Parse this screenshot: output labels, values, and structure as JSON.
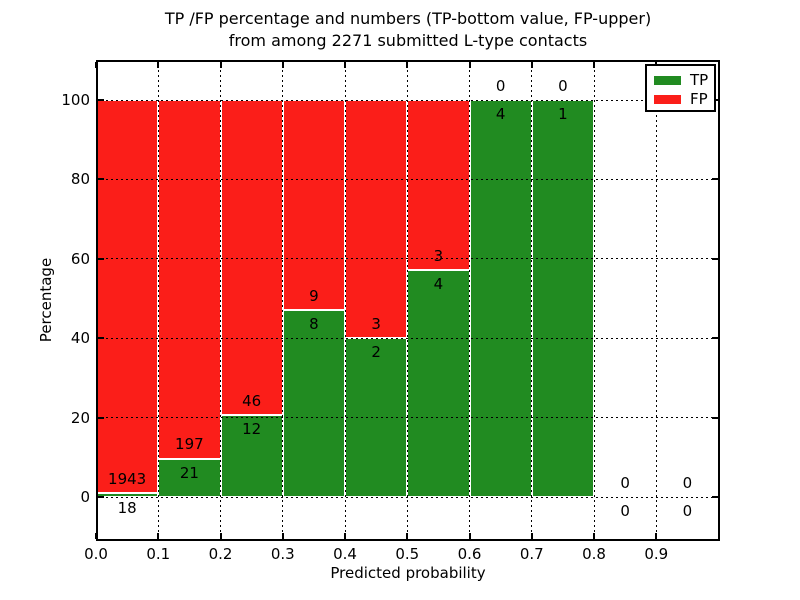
{
  "title": {
    "line1": "TP /FP percentage and numbers (TP-bottom value, FP-upper)",
    "line2": "from among 2271 submitted L-type contacts"
  },
  "chart_data": {
    "type": "bar",
    "subtype": "stacked-percentage-histogram",
    "title": "TP /FP percentage and numbers (TP-bottom value, FP-upper) from among 2271 submitted L-type contacts",
    "total_submitted_contacts": 2271,
    "xlabel": "Predicted probability",
    "ylabel": "Percentage",
    "xlim": [
      0.0,
      1.0
    ],
    "ylim": [
      -11,
      110
    ],
    "x_tick_labels": [
      "0.0",
      "0.1",
      "0.2",
      "0.3",
      "0.4",
      "0.5",
      "0.6",
      "0.7",
      "0.8",
      "0.9"
    ],
    "y_ticks": [
      0,
      20,
      40,
      60,
      80,
      100
    ],
    "grid": true,
    "annotation_scheme": "TP count below segment boundary, FP count above segment boundary",
    "legend": {
      "position": "upper-right",
      "entries": [
        {
          "label": "TP",
          "color": "#218b21"
        },
        {
          "label": "FP",
          "color": "#fb1e19"
        }
      ]
    },
    "series": [
      {
        "name": "TP",
        "values": [
          18,
          21,
          12,
          8,
          2,
          4,
          4,
          1,
          0,
          0
        ]
      },
      {
        "name": "FP",
        "values": [
          1943,
          197,
          46,
          9,
          3,
          3,
          0,
          0,
          0,
          0
        ]
      }
    ],
    "bins": [
      {
        "x0": 0.0,
        "x1": 0.1,
        "tp": 18,
        "fp": 1943
      },
      {
        "x0": 0.1,
        "x1": 0.2,
        "tp": 21,
        "fp": 197
      },
      {
        "x0": 0.2,
        "x1": 0.3,
        "tp": 12,
        "fp": 46
      },
      {
        "x0": 0.3,
        "x1": 0.4,
        "tp": 8,
        "fp": 9
      },
      {
        "x0": 0.4,
        "x1": 0.5,
        "tp": 2,
        "fp": 3
      },
      {
        "x0": 0.5,
        "x1": 0.6,
        "tp": 4,
        "fp": 3
      },
      {
        "x0": 0.6,
        "x1": 0.7,
        "tp": 4,
        "fp": 0
      },
      {
        "x0": 0.7,
        "x1": 0.8,
        "tp": 1,
        "fp": 0
      },
      {
        "x0": 0.8,
        "x1": 0.9,
        "tp": 0,
        "fp": 0
      },
      {
        "x0": 0.9,
        "x1": 1.0,
        "tp": 0,
        "fp": 0
      }
    ]
  },
  "colors": {
    "tp": "#218b21",
    "fp": "#fb1e19",
    "background": "#ffffff",
    "text": "#000000",
    "bar_edge": "#ffffff",
    "grid": "#000000"
  }
}
